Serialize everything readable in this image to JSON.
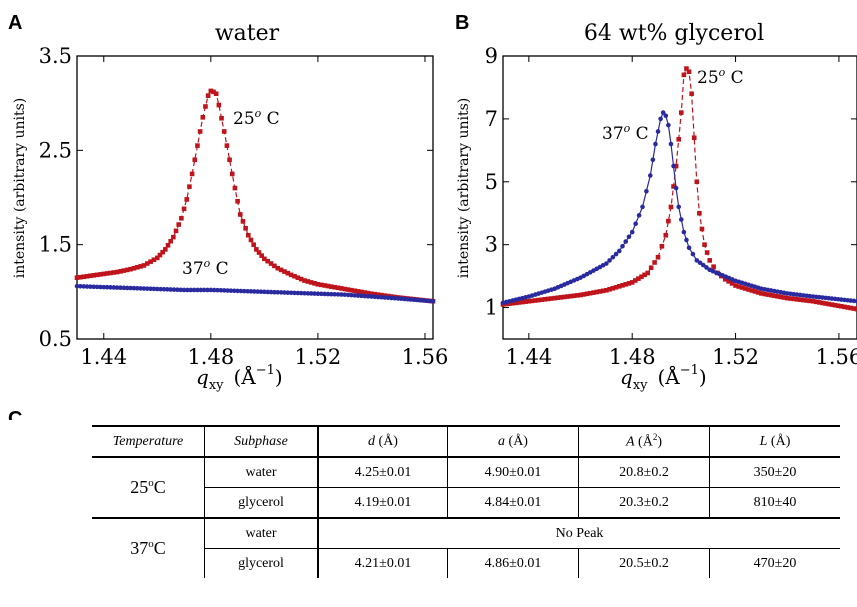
{
  "panels": {
    "A": {
      "letter": "A",
      "title": "water"
    },
    "B": {
      "letter": "B",
      "title": "64 wt% glycerol"
    },
    "C": {
      "letter": "C"
    }
  },
  "axes": {
    "ylabel": "intensity (arbitrary units)",
    "xlabel_main": "q",
    "xlabel_sub": "xy",
    "xlabel_unit": "(Å",
    "xlabel_exp": "−1",
    "xlabel_close": ")"
  },
  "annotations": {
    "A_25": "25",
    "A_37": "37",
    "B_25": "25",
    "B_37": "37",
    "deg": "o",
    "C_suffix": " C"
  },
  "colors": {
    "red": "#c0141c",
    "blue": "#2a2aa0"
  },
  "chart_data": [
    {
      "type": "line",
      "panel": "A",
      "title": "water",
      "xlabel": "q_xy (Å^-1)",
      "ylabel": "intensity (arbitrary units)",
      "xlim": [
        1.43,
        1.563
      ],
      "ylim": [
        0.5,
        3.5
      ],
      "xticks": [
        1.44,
        1.48,
        1.52,
        1.56
      ],
      "yticks": [
        0.5,
        1.5,
        2.5,
        3.5
      ],
      "xtick_labels": [
        "1.44",
        "1.48",
        "1.52",
        "1.56"
      ],
      "ytick_labels": [
        "0.5",
        "1.5",
        "2.5",
        "3.5"
      ],
      "series": [
        {
          "name": "25o C",
          "color": "#c0141c",
          "marker": "square",
          "x": [
            1.43,
            1.435,
            1.44,
            1.445,
            1.45,
            1.455,
            1.46,
            1.463,
            1.466,
            1.469,
            1.471,
            1.473,
            1.475,
            1.477,
            1.479,
            1.48,
            1.481,
            1.482,
            1.483,
            1.485,
            1.487,
            1.489,
            1.491,
            1.494,
            1.497,
            1.5,
            1.505,
            1.51,
            1.515,
            1.52,
            1.53,
            1.54,
            1.55,
            1.563
          ],
          "y": [
            1.15,
            1.17,
            1.19,
            1.21,
            1.24,
            1.28,
            1.36,
            1.45,
            1.58,
            1.78,
            1.98,
            2.25,
            2.55,
            2.85,
            3.08,
            3.13,
            3.12,
            3.1,
            2.98,
            2.7,
            2.4,
            2.1,
            1.82,
            1.6,
            1.45,
            1.35,
            1.25,
            1.18,
            1.12,
            1.08,
            1.03,
            0.98,
            0.94,
            0.9
          ]
        },
        {
          "name": "37o C",
          "color": "#2a2aa0",
          "marker": "circle",
          "x": [
            1.43,
            1.44,
            1.45,
            1.46,
            1.47,
            1.48,
            1.49,
            1.5,
            1.51,
            1.52,
            1.53,
            1.54,
            1.55,
            1.563
          ],
          "y": [
            1.06,
            1.05,
            1.04,
            1.03,
            1.02,
            1.02,
            1.01,
            1.0,
            0.99,
            0.98,
            0.97,
            0.95,
            0.93,
            0.9
          ]
        }
      ]
    },
    {
      "type": "line",
      "panel": "B",
      "title": "64 wt% glycerol",
      "xlabel": "q_xy (Å^-1)",
      "ylabel": "intensity (arbitrary units)",
      "xlim": [
        1.43,
        1.567
      ],
      "ylim": [
        0,
        9
      ],
      "xticks": [
        1.44,
        1.48,
        1.52,
        1.56
      ],
      "yticks": [
        1,
        3,
        5,
        7,
        9
      ],
      "xtick_labels": [
        "1.44",
        "1.48",
        "1.52",
        "1.56"
      ],
      "ytick_labels": [
        "1",
        "3",
        "5",
        "7",
        "9"
      ],
      "series": [
        {
          "name": "25o C",
          "color": "#c0141c",
          "marker": "square",
          "x": [
            1.43,
            1.44,
            1.45,
            1.46,
            1.47,
            1.48,
            1.486,
            1.49,
            1.493,
            1.495,
            1.497,
            1.499,
            1.5,
            1.501,
            1.502,
            1.503,
            1.504,
            1.505,
            1.506,
            1.508,
            1.51,
            1.513,
            1.516,
            1.52,
            1.53,
            1.54,
            1.55,
            1.567
          ],
          "y": [
            1.1,
            1.2,
            1.3,
            1.4,
            1.55,
            1.8,
            2.1,
            2.6,
            3.3,
            4.2,
            5.5,
            7.2,
            8.4,
            8.6,
            8.5,
            7.8,
            6.4,
            5.0,
            4.0,
            3.0,
            2.5,
            2.1,
            1.9,
            1.7,
            1.45,
            1.3,
            1.2,
            0.95
          ]
        },
        {
          "name": "37o C",
          "color": "#2a2aa0",
          "marker": "circle",
          "x": [
            1.43,
            1.44,
            1.45,
            1.46,
            1.47,
            1.475,
            1.48,
            1.484,
            1.487,
            1.489,
            1.491,
            1.492,
            1.493,
            1.494,
            1.495,
            1.496,
            1.497,
            1.498,
            1.5,
            1.502,
            1.505,
            1.51,
            1.52,
            1.53,
            1.54,
            1.55,
            1.567
          ],
          "y": [
            1.15,
            1.35,
            1.6,
            1.95,
            2.4,
            2.8,
            3.4,
            4.2,
            5.2,
            6.2,
            7.0,
            7.2,
            7.1,
            6.8,
            6.2,
            5.5,
            4.8,
            4.2,
            3.4,
            2.9,
            2.5,
            2.2,
            1.85,
            1.6,
            1.45,
            1.35,
            1.2
          ]
        }
      ]
    },
    {
      "type": "table",
      "panel": "C",
      "headers": [
        "Temperature",
        "Subphase",
        "d (Å)",
        "a (Å)",
        "A (Å2)",
        "L (Å)"
      ],
      "rows": [
        {
          "temperature": "25oC",
          "subphase": "water",
          "d": "4.25±0.01",
          "a": "4.90±0.01",
          "A": "20.8±0.2",
          "L": "350±20"
        },
        {
          "temperature": "",
          "subphase": "glycerol",
          "d": "4.19±0.01",
          "a": "4.84±0.01",
          "A": "20.3±0.2",
          "L": "810±40"
        },
        {
          "temperature": "37oC",
          "subphase": "water",
          "no_peak": "No Peak"
        },
        {
          "temperature": "",
          "subphase": "glycerol",
          "d": "4.21±0.01",
          "a": "4.86±0.01",
          "A": "20.5±0.2",
          "L": "470±20"
        }
      ]
    }
  ],
  "table": {
    "h_temp": "Temperature",
    "h_sub": "Subphase",
    "h_d": "d",
    "h_d_unit": " (Å)",
    "h_a": "a",
    "h_a_unit": " (Å)",
    "h_A": "A",
    "h_A_unit": " (Å",
    "h_A_exp": "2",
    "h_A_close": ")",
    "h_L": "L",
    "h_L_unit": " (Å)",
    "t25": "25",
    "t37": "37",
    "deg": "o",
    "tC": "C",
    "r1": {
      "sub": "water",
      "d": "4.25±0.01",
      "a": "4.90±0.01",
      "A": "20.8±0.2",
      "L": "350±20"
    },
    "r2": {
      "sub": "glycerol",
      "d": "4.19±0.01",
      "a": "4.84±0.01",
      "A": "20.3±0.2",
      "L": "810±40"
    },
    "r3": {
      "sub": "water",
      "no_peak": "No Peak"
    },
    "r4": {
      "sub": "glycerol",
      "d": "4.21±0.01",
      "a": "4.86±0.01",
      "A": "20.5±0.2",
      "L": "470±20"
    }
  }
}
